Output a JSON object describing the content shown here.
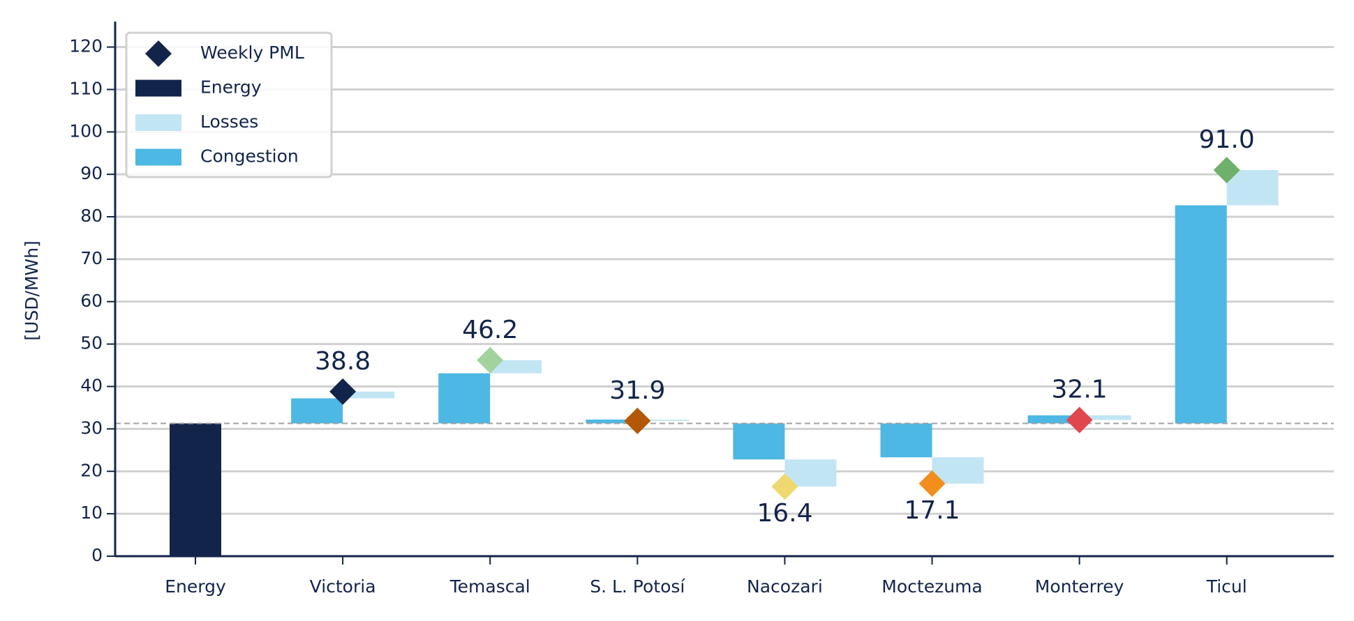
{
  "chart_data": {
    "type": "waterfall",
    "y_label": "[USD/MWh]",
    "categories": [
      "Energy",
      "Victoria",
      "Temascal",
      "S. L. Potosí",
      "Nacozari",
      "Moctezuma",
      "Monterrey",
      "Ticul"
    ],
    "series": [
      {
        "name": "Weekly PML",
        "color": "#13244b",
        "values": [
          null,
          38.8,
          46.2,
          31.9,
          16.4,
          17.1,
          32.1,
          91.0
        ],
        "value_labels": [
          null,
          "38.8",
          "46.2",
          "31.9",
          "16.4",
          "17.1",
          "32.1",
          "91.0"
        ],
        "point_colors": [
          null,
          "#13244b",
          "#a3d39c",
          "#b35806",
          "#f0d870",
          "#f28e1c",
          "#e0474c",
          "#6fb06a"
        ]
      },
      {
        "name": "Energy",
        "color": "#13244b",
        "values": [
          31.3,
          null,
          null,
          null,
          null,
          null,
          null,
          null
        ]
      },
      {
        "name": "Losses",
        "color": "#c2e5f4",
        "values": [
          null,
          1.6,
          3.1,
          -0.3,
          -6.4,
          -6.2,
          -1.1,
          8.3
        ]
      },
      {
        "name": "Congestion",
        "color": "#4db8e3",
        "values": [
          null,
          5.9,
          11.8,
          0.9,
          -8.5,
          -8.0,
          1.9,
          51.4
        ]
      }
    ],
    "ylim": [
      0,
      126
    ],
    "yticks": [
      0,
      10,
      20,
      30,
      40,
      50,
      60,
      70,
      80,
      90,
      100,
      110,
      120
    ],
    "grid": true,
    "legend": "upper left"
  }
}
